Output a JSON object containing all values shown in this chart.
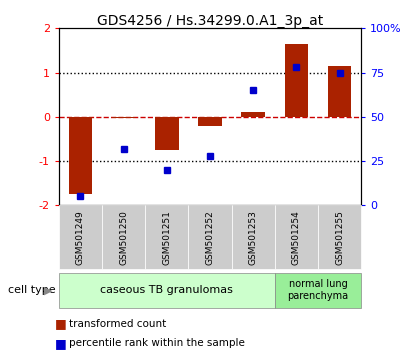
{
  "title": "GDS4256 / Hs.34299.0.A1_3p_at",
  "categories": [
    "GSM501249",
    "GSM501250",
    "GSM501251",
    "GSM501252",
    "GSM501253",
    "GSM501254",
    "GSM501255"
  ],
  "red_values": [
    -1.75,
    -0.02,
    -0.75,
    -0.2,
    0.1,
    1.65,
    1.15
  ],
  "blue_values_pct": [
    5,
    32,
    20,
    28,
    65,
    78,
    75
  ],
  "ylim_left": [
    -2,
    2
  ],
  "ylim_right": [
    0,
    100
  ],
  "left_ticks": [
    -2,
    -1,
    0,
    1,
    2
  ],
  "right_ticks": [
    0,
    25,
    50,
    75,
    100
  ],
  "right_tick_labels": [
    "0",
    "25",
    "50",
    "75",
    "100%"
  ],
  "group1_label": "caseous TB granulomas",
  "group1_indices": [
    0,
    5
  ],
  "group2_label": "normal lung\nparenchyma",
  "group2_indices": [
    5,
    7
  ],
  "cell_type_label": "cell type",
  "legend_red": "transformed count",
  "legend_blue": "percentile rank within the sample",
  "bar_color": "#aa2200",
  "dot_color": "#0000cc",
  "group1_color": "#ccffcc",
  "group2_color": "#99ee99",
  "label_bg_color": "#cccccc",
  "hline_color": "#cc0000",
  "dotted_color": "#000000"
}
